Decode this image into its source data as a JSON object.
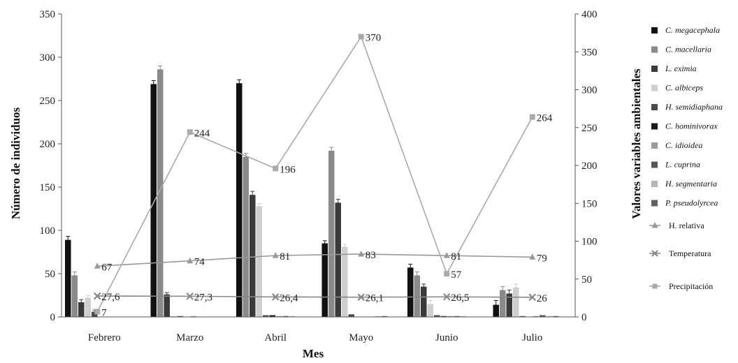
{
  "chart_data": {
    "type": "bar",
    "title": "",
    "xlabel": "Mes",
    "ylabel": "Número de individuos",
    "y2label": "Valores variables ambientales",
    "ylim": [
      0,
      350
    ],
    "y2lim": [
      0,
      400
    ],
    "yticks": [
      "0",
      "50",
      "100",
      "150",
      "200",
      "250",
      "300",
      "350"
    ],
    "y2ticks": [
      "0",
      "50",
      "100",
      "150",
      "200",
      "250",
      "300",
      "350",
      "400"
    ],
    "grid": false,
    "legend_position": "right",
    "categories": [
      "Febrero",
      "Marzo",
      "Abril",
      "Mayo",
      "Junio",
      "Julio"
    ],
    "series": [
      {
        "name": "C. megacephala",
        "italic": true,
        "color": "#111111",
        "values": [
          89,
          269,
          270,
          85,
          57,
          14
        ],
        "err": [
          4,
          4,
          4,
          3,
          4,
          5
        ]
      },
      {
        "name": "C. macellaria",
        "italic": true,
        "color": "#8a8a8a",
        "values": [
          48,
          286,
          185,
          192,
          48,
          31
        ],
        "err": [
          4,
          4,
          4,
          4,
          4,
          4
        ]
      },
      {
        "name": "L. eximia",
        "italic": true,
        "color": "#3a3a3a",
        "values": [
          17,
          26,
          141,
          132,
          35,
          27
        ],
        "err": [
          3,
          2,
          4,
          4,
          3,
          4
        ]
      },
      {
        "name": "C. albiceps",
        "italic": true,
        "color": "#cfcfcf",
        "values": [
          22,
          1,
          128,
          81,
          15,
          34
        ],
        "err": [
          3,
          0,
          3,
          3,
          4,
          4
        ]
      },
      {
        "name": "H. semidiaphana",
        "italic": true,
        "color": "#4a4a4a",
        "values": [
          6,
          1,
          2,
          3,
          2,
          1
        ],
        "err": [
          2,
          0,
          0,
          0,
          0,
          0
        ]
      },
      {
        "name": "C. hominivorax",
        "italic": true,
        "color": "#1a1a1a",
        "values": [
          0,
          0,
          2,
          0,
          1,
          0
        ],
        "err": [
          0,
          0,
          0,
          0,
          0,
          0
        ]
      },
      {
        "name": "C. idioidea",
        "italic": true,
        "color": "#9a9a9a",
        "values": [
          0,
          1,
          1,
          0,
          1,
          1
        ],
        "err": [
          0,
          0,
          0,
          0,
          0,
          0
        ]
      },
      {
        "name": "L. cuprina",
        "italic": true,
        "color": "#555555",
        "values": [
          0,
          0,
          1,
          0,
          1,
          2
        ],
        "err": [
          0,
          0,
          0,
          0,
          0,
          0
        ]
      },
      {
        "name": "H. segmentaria",
        "italic": true,
        "color": "#b5b5b5",
        "values": [
          0,
          0,
          1,
          1,
          1,
          1
        ],
        "err": [
          0,
          0,
          0,
          0,
          0,
          0
        ]
      },
      {
        "name": "P. pseudolyrcea",
        "italic": true,
        "color": "#606060",
        "values": [
          0,
          0,
          0,
          1,
          0,
          1
        ],
        "err": [
          0,
          0,
          0,
          0,
          0,
          0
        ]
      }
    ],
    "lines": [
      {
        "name": "H. relativa",
        "axis": "right",
        "marker": "triangle",
        "color": "#999999",
        "values": [
          67,
          74,
          81,
          83,
          81,
          79
        ],
        "labels": [
          "67",
          "74",
          "81",
          "83",
          "81",
          "79"
        ]
      },
      {
        "name": "Temperatura",
        "axis": "right",
        "marker": "x",
        "color": "#888888",
        "values": [
          27.6,
          27.3,
          26.4,
          26.1,
          26.5,
          26
        ],
        "labels": [
          "27,6",
          "27,3",
          "26,4",
          "26,1",
          "26,5",
          "26"
        ]
      },
      {
        "name": "Precipitación",
        "axis": "right",
        "marker": "square",
        "color": "#aaaaaa",
        "values": [
          7,
          244,
          196,
          370,
          57,
          264
        ],
        "labels": [
          "7",
          "244",
          "196",
          "370",
          "57",
          "264"
        ]
      }
    ]
  }
}
